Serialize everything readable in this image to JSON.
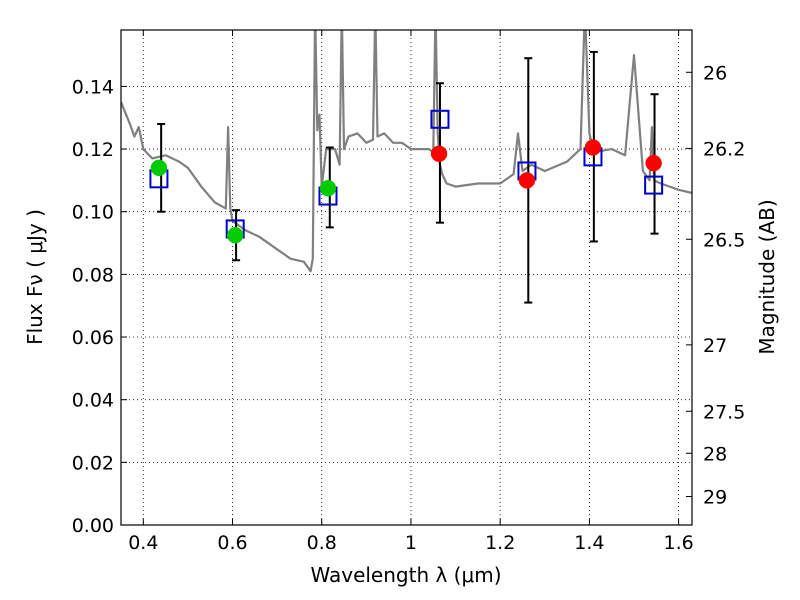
{
  "chart_data": {
    "type": "scatter",
    "title": "",
    "xlabel": "Wavelength  λ (μm)",
    "ylabel": "Flux  Fν  ( μJy )",
    "y2label": "Magnitude (AB)",
    "xlim": [
      0.35,
      1.63
    ],
    "ylim": [
      0.0,
      0.158
    ],
    "grid": true,
    "x_ticks": [
      {
        "value": 0.4,
        "label": "0.4"
      },
      {
        "value": 0.6,
        "label": "0.6"
      },
      {
        "value": 0.8,
        "label": "0.8"
      },
      {
        "value": 1.0,
        "label": "1"
      },
      {
        "value": 1.2,
        "label": "1.2"
      },
      {
        "value": 1.4,
        "label": "1.4"
      },
      {
        "value": 1.6,
        "label": "1.6"
      }
    ],
    "y_ticks": [
      {
        "value": 0.0,
        "label": "0.00"
      },
      {
        "value": 0.02,
        "label": "0.02"
      },
      {
        "value": 0.04,
        "label": "0.04"
      },
      {
        "value": 0.06,
        "label": "0.06"
      },
      {
        "value": 0.08,
        "label": "0.08"
      },
      {
        "value": 0.1,
        "label": "0.10"
      },
      {
        "value": 0.12,
        "label": "0.12"
      },
      {
        "value": 0.14,
        "label": "0.14"
      }
    ],
    "y2_ticks": [
      {
        "flux": 0.1445,
        "label": "26"
      },
      {
        "flux": 0.1202,
        "label": "26.2"
      },
      {
        "flux": 0.0912,
        "label": "26.5"
      },
      {
        "flux": 0.0575,
        "label": "27"
      },
      {
        "flux": 0.0363,
        "label": "27.5"
      },
      {
        "flux": 0.0229,
        "label": "28"
      },
      {
        "flux": 0.0091,
        "label": "29"
      }
    ],
    "series": [
      {
        "marker": "circle",
        "color": "#00cc00",
        "points": [
          {
            "x": 0.435,
            "y": 0.114
          },
          {
            "x": 0.606,
            "y": 0.0925
          },
          {
            "x": 0.814,
            "y": 0.1075
          }
        ]
      },
      {
        "marker": "circle",
        "color": "#ff0000",
        "points": [
          {
            "x": 1.063,
            "y": 0.1185
          },
          {
            "x": 1.26,
            "y": 0.11
          },
          {
            "x": 1.408,
            "y": 0.1205
          },
          {
            "x": 1.544,
            "y": 0.1155
          }
        ]
      },
      {
        "marker": "square",
        "color": "#0000cc",
        "points": [
          {
            "x": 0.435,
            "y": 0.1105
          },
          {
            "x": 0.606,
            "y": 0.0945
          },
          {
            "x": 0.814,
            "y": 0.105
          },
          {
            "x": 1.065,
            "y": 0.1295
          },
          {
            "x": 1.26,
            "y": 0.113
          },
          {
            "x": 1.408,
            "y": 0.1175
          },
          {
            "x": 1.544,
            "y": 0.1085
          }
        ]
      },
      {
        "marker": "errorbar",
        "color": "#000000",
        "points": [
          {
            "x": 0.44,
            "low": 0.1,
            "high": 0.128
          },
          {
            "x": 0.608,
            "low": 0.0845,
            "high": 0.1005
          },
          {
            "x": 0.818,
            "low": 0.095,
            "high": 0.1205
          },
          {
            "x": 1.065,
            "low": 0.0965,
            "high": 0.141
          },
          {
            "x": 1.263,
            "low": 0.071,
            "high": 0.149
          },
          {
            "x": 1.41,
            "low": 0.0905,
            "high": 0.151
          },
          {
            "x": 1.546,
            "low": 0.093,
            "high": 0.1375
          }
        ]
      },
      {
        "type": "line",
        "color": "#808080",
        "x": [
          0.35,
          0.37,
          0.38,
          0.39,
          0.4,
          0.42,
          0.45,
          0.48,
          0.5,
          0.53,
          0.56,
          0.585,
          0.59,
          0.595,
          0.6,
          0.63,
          0.66,
          0.7,
          0.73,
          0.76,
          0.775,
          0.78,
          0.785,
          0.79,
          0.795,
          0.8,
          0.81,
          0.83,
          0.84,
          0.845,
          0.85,
          0.86,
          0.88,
          0.9,
          0.915,
          0.92,
          0.925,
          0.94,
          0.96,
          0.98,
          1.0,
          1.04,
          1.05,
          1.055,
          1.06,
          1.065,
          1.07,
          1.08,
          1.1,
          1.15,
          1.2,
          1.23,
          1.24,
          1.25,
          1.27,
          1.3,
          1.35,
          1.38,
          1.39,
          1.4,
          1.41,
          1.45,
          1.48,
          1.5,
          1.52,
          1.535,
          1.54,
          1.545,
          1.56,
          1.6,
          1.63
        ],
        "values": [
          0.135,
          0.128,
          0.124,
          0.127,
          0.12,
          0.117,
          0.118,
          0.116,
          0.114,
          0.108,
          0.103,
          0.101,
          0.127,
          0.101,
          0.097,
          0.094,
          0.092,
          0.088,
          0.085,
          0.084,
          0.081,
          0.085,
          0.165,
          0.126,
          0.131,
          0.108,
          0.12,
          0.12,
          0.115,
          0.165,
          0.12,
          0.124,
          0.125,
          0.122,
          0.123,
          0.165,
          0.124,
          0.125,
          0.122,
          0.122,
          0.12,
          0.12,
          0.119,
          0.165,
          0.125,
          0.115,
          0.112,
          0.109,
          0.108,
          0.109,
          0.109,
          0.112,
          0.125,
          0.113,
          0.115,
          0.113,
          0.116,
          0.12,
          0.165,
          0.125,
          0.119,
          0.12,
          0.118,
          0.15,
          0.113,
          0.11,
          0.127,
          0.11,
          0.109,
          0.107,
          0.106
        ]
      }
    ]
  }
}
